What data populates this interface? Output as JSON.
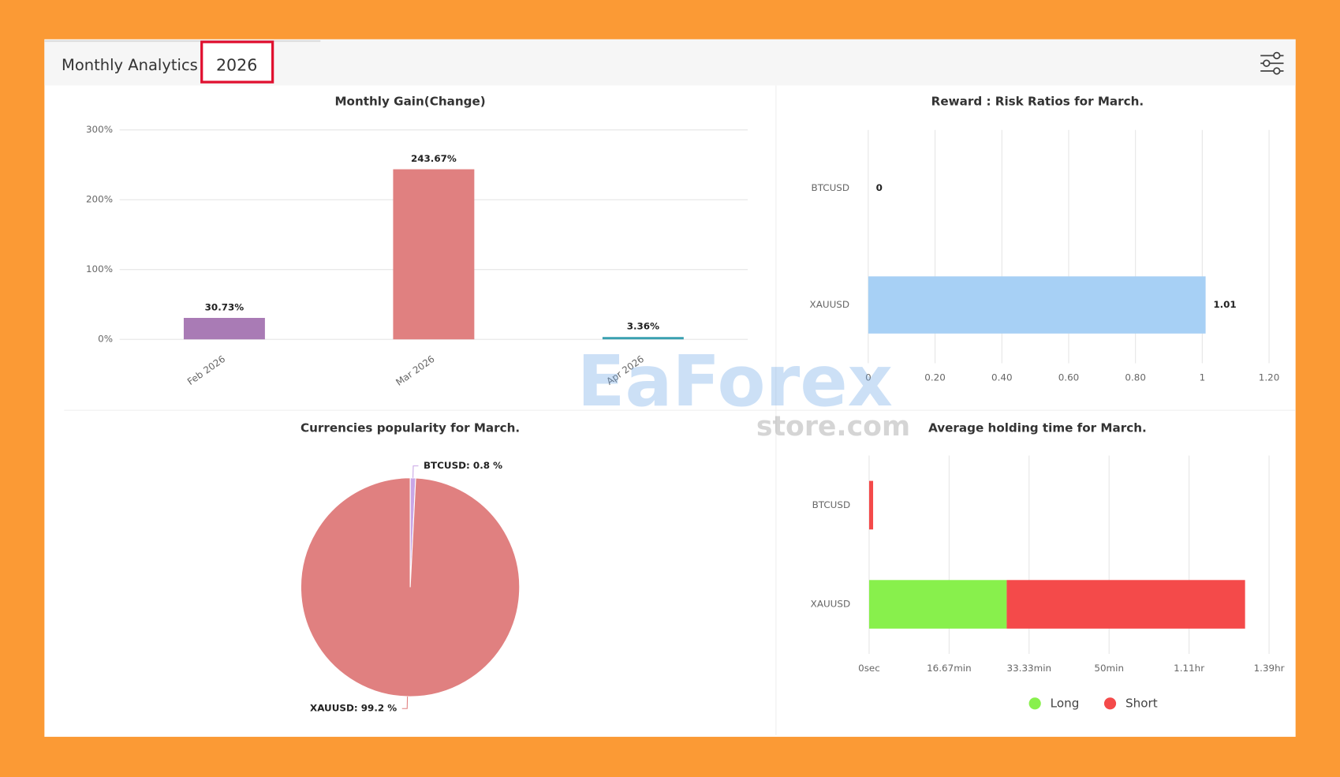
{
  "header": {
    "title": "Monthly Analytics",
    "year": "2026"
  },
  "watermark": {
    "brand": "EaForex",
    "domain": "store.com"
  },
  "chart_data": [
    {
      "type": "bar",
      "orientation": "vertical",
      "title": "Monthly Gain(Change)",
      "categories": [
        "Feb 2026",
        "Mar 2026",
        "Apr 2026"
      ],
      "values": [
        30.73,
        243.67,
        3.36
      ],
      "value_labels": [
        "30.73%",
        "243.67%",
        "3.36%"
      ],
      "colors": [
        "#a97bb5",
        "#e08080",
        "#3aa0b0"
      ],
      "ylim": [
        0,
        300
      ],
      "yticks": [
        {
          "value": 0,
          "label": "0%"
        },
        {
          "value": 100,
          "label": "100%"
        },
        {
          "value": 200,
          "label": "200%"
        },
        {
          "value": 300,
          "label": "300%"
        }
      ],
      "grid": true
    },
    {
      "type": "bar",
      "orientation": "horizontal",
      "title": "Reward : Risk Ratios for March.",
      "categories": [
        "BTCUSD",
        "XAUUSD"
      ],
      "values": [
        0,
        1.01
      ],
      "color": "#a7d0f5",
      "data_labels": true,
      "xlim": [
        0,
        1.2
      ],
      "xticks": [
        0,
        {
          "value": 0.2,
          "label": "0.20"
        },
        {
          "value": 0.4,
          "label": "0.40"
        },
        {
          "value": 0.6,
          "label": "0.60"
        },
        {
          "value": 0.8,
          "label": "0.80"
        },
        1,
        {
          "value": 1.2,
          "label": "1.20"
        }
      ],
      "grid": true
    },
    {
      "type": "pie",
      "title": "Currencies popularity for March.",
      "categories": [
        "BTCUSD",
        "XAUUSD"
      ],
      "values": [
        0.8,
        99.2
      ],
      "value_labels": [
        "BTCUSD: 0.8 %",
        "XAUUSD: 99.2 %"
      ],
      "colors": [
        "#c9a6e6",
        "#e08080"
      ]
    },
    {
      "type": "bar",
      "orientation": "horizontal",
      "stacked": true,
      "title": "Average holding time for March.",
      "categories": [
        "BTCUSD",
        "XAUUSD"
      ],
      "series": [
        {
          "name": "Long",
          "color": "#88f04c",
          "values": [
            0,
            1720
          ]
        },
        {
          "name": "Short",
          "color": "#f44a4a",
          "values": [
            50,
            2980
          ]
        }
      ],
      "xlim": [
        0,
        5000
      ],
      "xticks": [
        {
          "value": 0,
          "label": "0sec"
        },
        {
          "value": 1000,
          "label": "16.67min"
        },
        {
          "value": 2000,
          "label": "33.33min"
        },
        {
          "value": 3000,
          "label": "50min"
        },
        {
          "value": 4000,
          "label": "1.11hr"
        },
        {
          "value": 5000,
          "label": "1.39hr"
        }
      ],
      "grid": true,
      "legend": "bottom"
    }
  ]
}
